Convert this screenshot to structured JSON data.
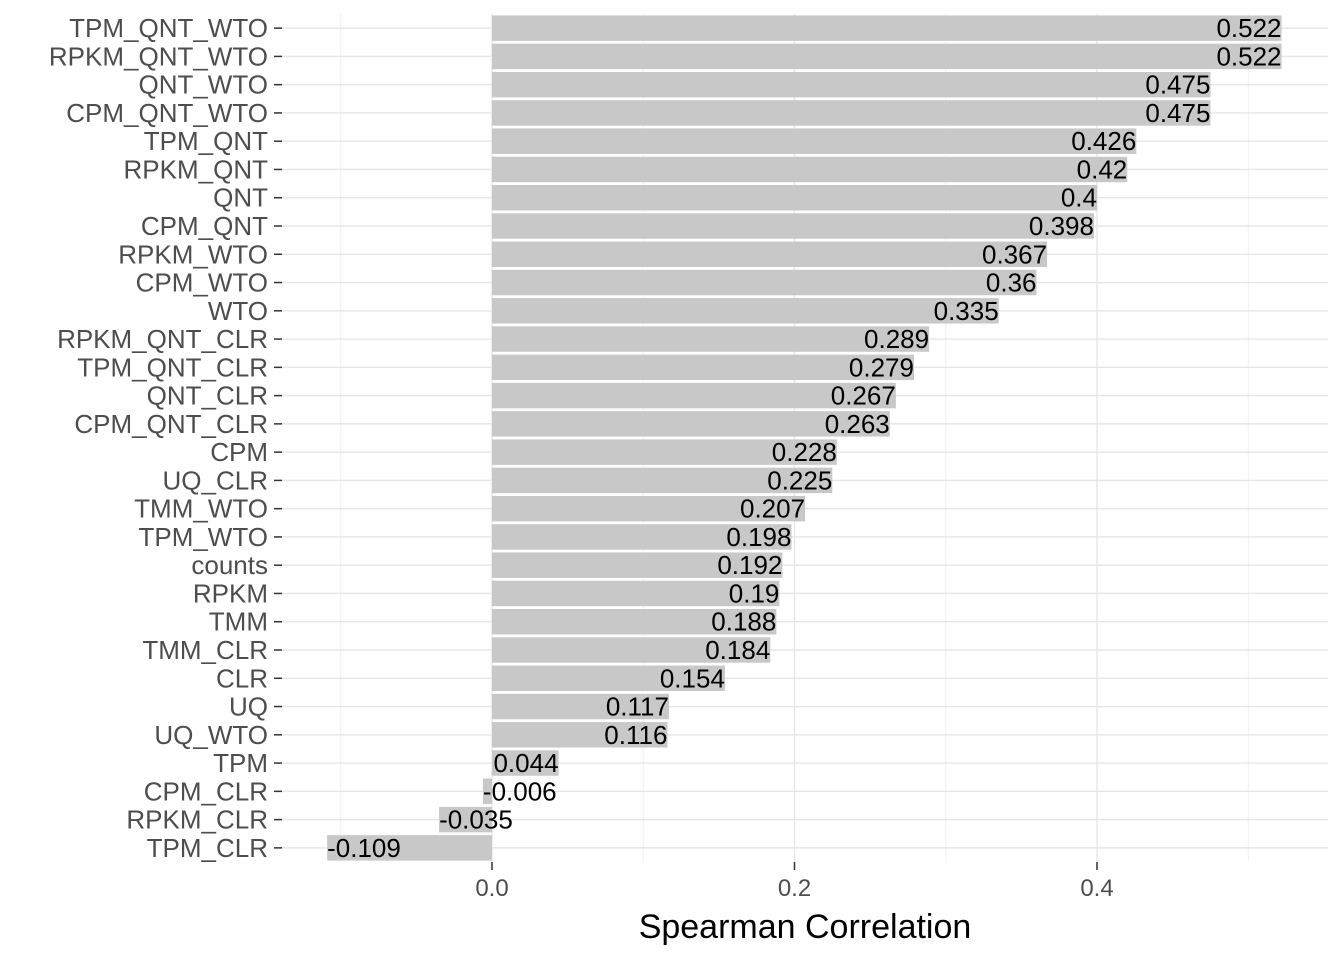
{
  "chart_data": {
    "type": "bar",
    "orientation": "horizontal",
    "title": "",
    "xlabel": "Spearman Correlation",
    "ylabel": "",
    "xlim": [
      -0.13,
      0.54
    ],
    "xticks": [
      0.0,
      0.2,
      0.4
    ],
    "xtick_labels": [
      "0.0",
      "0.2",
      "0.4"
    ],
    "grid": true,
    "bar_color": "#c8c8c8",
    "categories": [
      "TPM_QNT_WTO",
      "RPKM_QNT_WTO",
      "QNT_WTO",
      "CPM_QNT_WTO",
      "TPM_QNT",
      "RPKM_QNT",
      "QNT",
      "CPM_QNT",
      "RPKM_WTO",
      "CPM_WTO",
      "WTO",
      "RPKM_QNT_CLR",
      "TPM_QNT_CLR",
      "QNT_CLR",
      "CPM_QNT_CLR",
      "CPM",
      "UQ_CLR",
      "TMM_WTO",
      "TPM_WTO",
      "counts",
      "RPKM",
      "TMM",
      "TMM_CLR",
      "CLR",
      "UQ",
      "UQ_WTO",
      "TPM",
      "CPM_CLR",
      "RPKM_CLR",
      "TPM_CLR"
    ],
    "values": [
      0.522,
      0.522,
      0.475,
      0.475,
      0.426,
      0.42,
      0.4,
      0.398,
      0.367,
      0.36,
      0.335,
      0.289,
      0.279,
      0.267,
      0.263,
      0.228,
      0.225,
      0.207,
      0.198,
      0.192,
      0.19,
      0.188,
      0.184,
      0.154,
      0.117,
      0.116,
      0.044,
      -0.006,
      -0.035,
      -0.109
    ],
    "value_labels": [
      "0.522",
      "0.522",
      "0.475",
      "0.475",
      "0.426",
      "0.42",
      "0.4",
      "0.398",
      "0.367",
      "0.36",
      "0.335",
      "0.289",
      "0.279",
      "0.267",
      "0.263",
      "0.228",
      "0.225",
      "0.207",
      "0.198",
      "0.192",
      "0.19",
      "0.188",
      "0.184",
      "0.154",
      "0.117",
      "0.116",
      "0.044",
      "-0.006",
      "-0.035",
      "-0.109"
    ]
  }
}
